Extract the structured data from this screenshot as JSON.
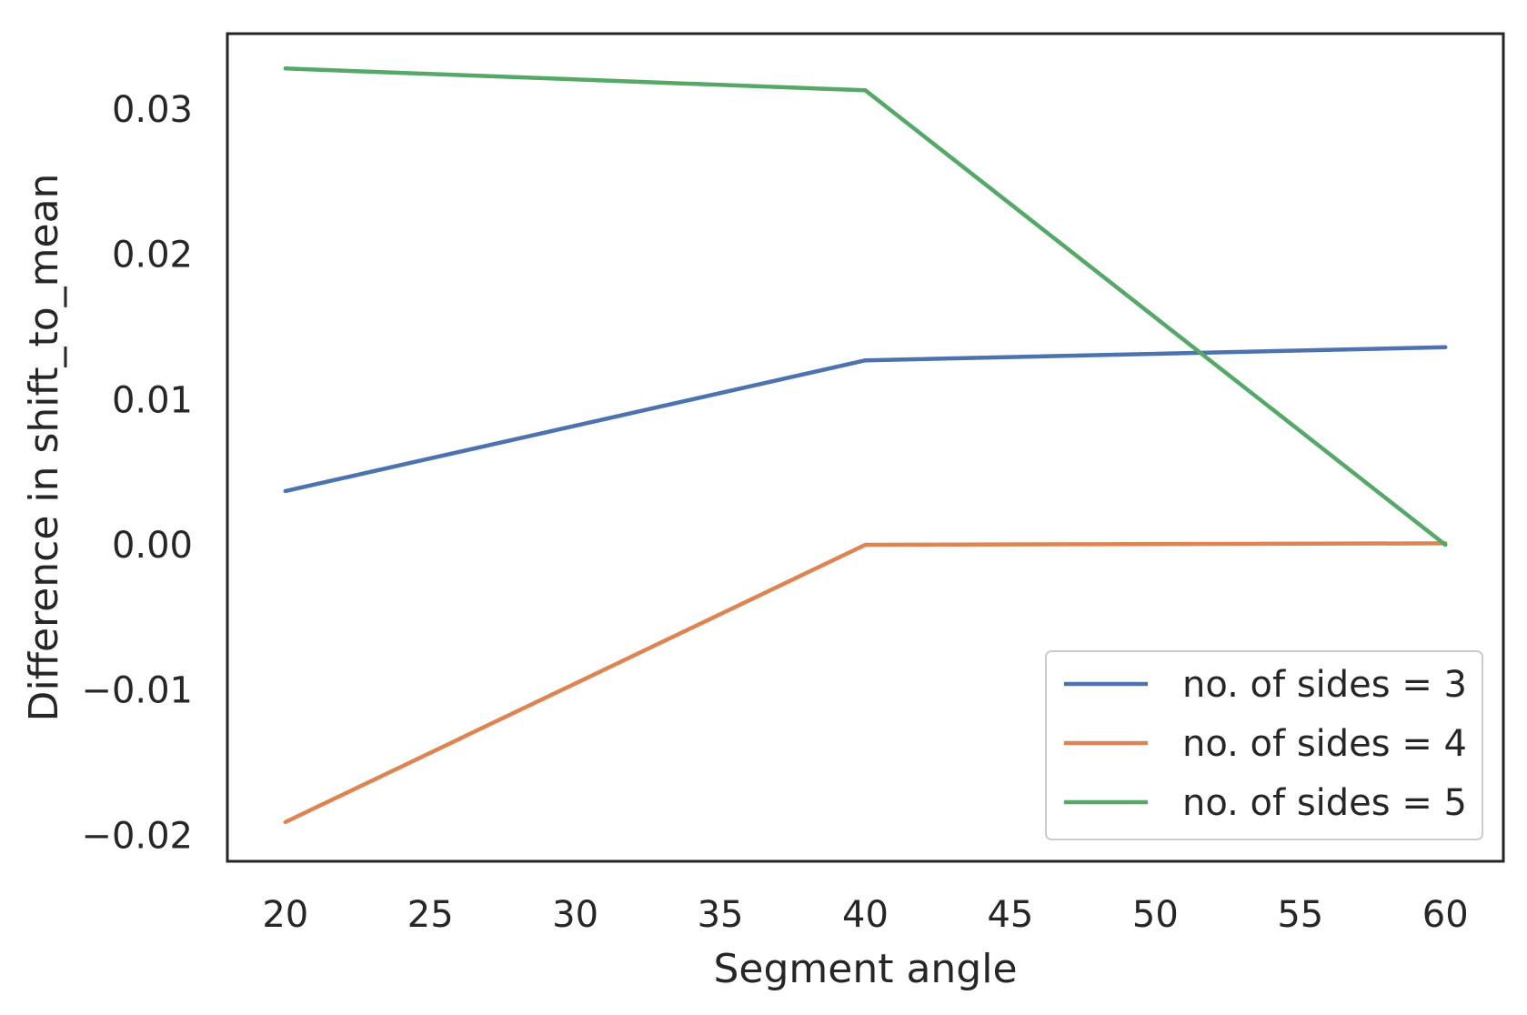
{
  "chart_data": {
    "type": "line",
    "title": "",
    "xlabel": "Segment angle",
    "ylabel": "Difference in shift_to_mean",
    "x": [
      20,
      40,
      60
    ],
    "xlim": [
      18,
      62
    ],
    "ylim": [
      -0.0218,
      0.0352
    ],
    "xticks": [
      20,
      25,
      30,
      35,
      40,
      45,
      50,
      55,
      60
    ],
    "xtick_labels": [
      "20",
      "25",
      "30",
      "35",
      "40",
      "45",
      "50",
      "55",
      "60"
    ],
    "yticks": [
      -0.02,
      -0.01,
      0.0,
      0.01,
      0.02,
      0.03
    ],
    "ytick_labels": [
      "−0.02",
      "−0.01",
      "0.00",
      "0.01",
      "0.02",
      "0.03"
    ],
    "grid": false,
    "legend_position": "lower-right",
    "series": [
      {
        "name": "no. of sides = 3",
        "color": "#4c72b0",
        "values": [
          0.0037,
          0.0127,
          0.0136
        ]
      },
      {
        "name": "no. of sides = 4",
        "color": "#dd8452",
        "values": [
          -0.0191,
          0.0,
          0.0001
        ]
      },
      {
        "name": "no. of sides = 5",
        "color": "#55a868",
        "values": [
          0.0328,
          0.0313,
          0.0
        ]
      }
    ]
  }
}
